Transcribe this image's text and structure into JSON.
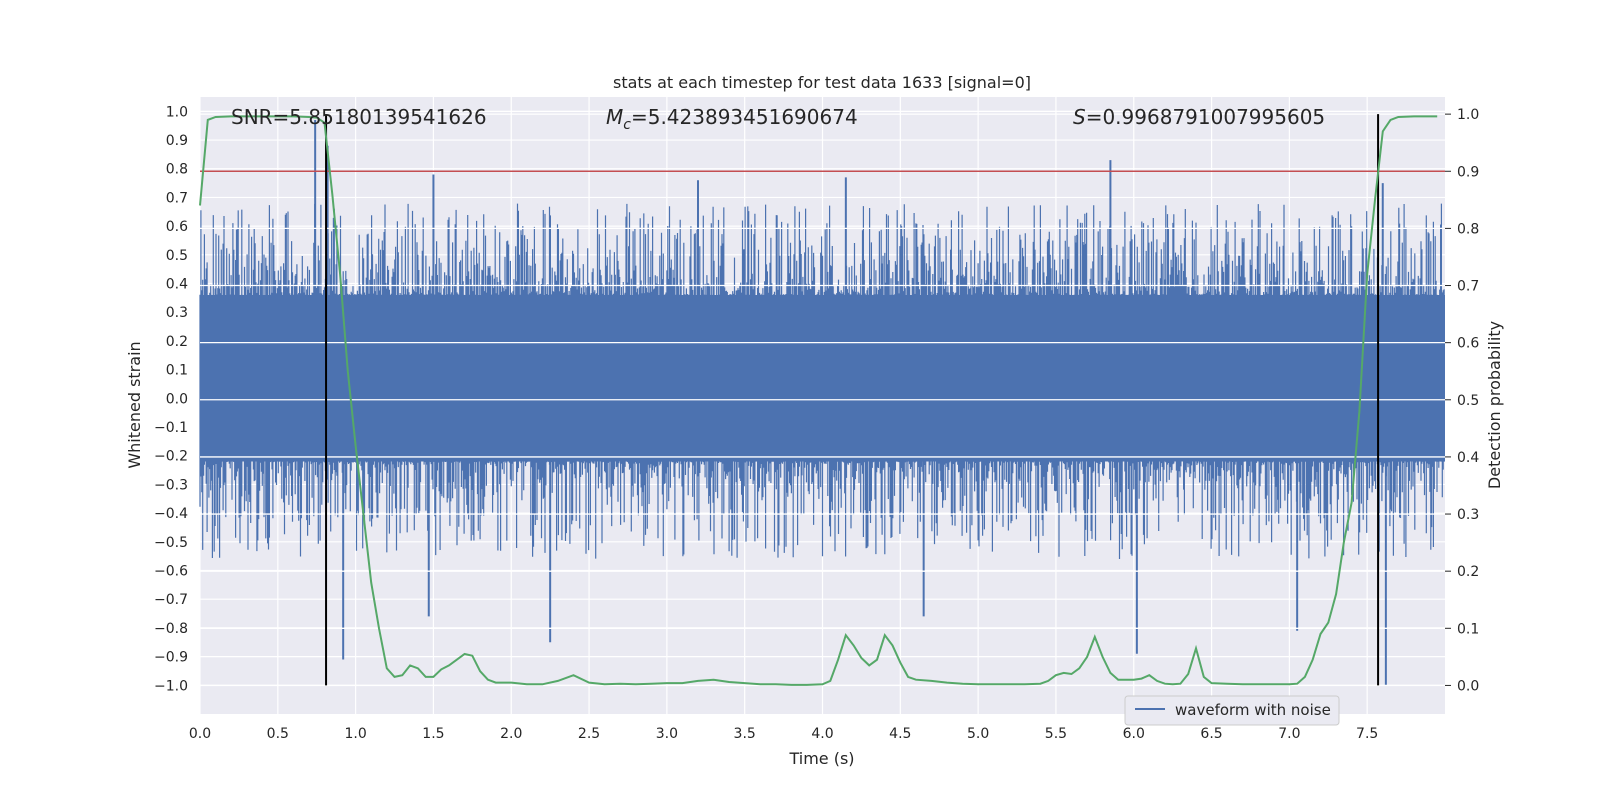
{
  "chart_data": {
    "type": "line",
    "title": "stats at each timestep for test data 1633 [signal=0]",
    "xlabel": "Time (s)",
    "ylabel": "Whitened strain",
    "y2label": "Detection probability",
    "xlim": [
      0,
      8
    ],
    "ylim": [
      -1.1,
      1.05
    ],
    "y2lim": [
      -0.05,
      1.03
    ],
    "x_ticks": [
      "0.0",
      "0.5",
      "1.0",
      "1.5",
      "2.0",
      "2.5",
      "3.0",
      "3.5",
      "4.0",
      "4.5",
      "5.0",
      "5.5",
      "6.0",
      "6.5",
      "7.0",
      "7.5"
    ],
    "y_ticks": [
      "1.0",
      "0.9",
      "0.8",
      "0.7",
      "0.6",
      "0.5",
      "0.4",
      "0.3",
      "0.2",
      "0.1",
      "0.0",
      "−0.1",
      "−0.2",
      "−0.3",
      "−0.4",
      "−0.5",
      "−0.6",
      "−0.7",
      "−0.8",
      "−0.9",
      "−1.0"
    ],
    "y2_ticks": [
      "1.0",
      "0.9",
      "0.8",
      "0.7",
      "0.6",
      "0.5",
      "0.4",
      "0.3",
      "0.2",
      "0.1",
      "0.0"
    ],
    "annotations": {
      "snr": "SNR=5.85180139541626",
      "mc_symbol": "M",
      "mc_sub": "c",
      "mc_value": "=5.423893451690674",
      "s_symbol": "S",
      "s_value": "=0.9968791007995605"
    },
    "legend": {
      "label": "waveform with noise",
      "placement": "lower-right"
    },
    "threshold": {
      "value": 0.9,
      "axis": "right",
      "color": "#c44e52"
    },
    "vlines": [
      0.81,
      7.57
    ],
    "waveform": {
      "name": "waveform with noise",
      "color": "#4c72b0",
      "t_start": 0.0,
      "t_end": 8.0,
      "band": [
        -0.22,
        0.36
      ],
      "notable_peaks": [
        {
          "t": 0.74,
          "y": 0.97
        },
        {
          "t": 0.82,
          "y": 0.88
        },
        {
          "t": 1.5,
          "y": 0.78
        },
        {
          "t": 3.2,
          "y": 0.76
        },
        {
          "t": 4.15,
          "y": 0.77
        },
        {
          "t": 5.85,
          "y": 0.83
        },
        {
          "t": 7.6,
          "y": 0.75
        },
        {
          "t": 0.92,
          "y": -0.91
        },
        {
          "t": 1.47,
          "y": -0.76
        },
        {
          "t": 2.25,
          "y": -0.85
        },
        {
          "t": 6.02,
          "y": -0.89
        },
        {
          "t": 7.62,
          "y": -1.0
        },
        {
          "t": 7.05,
          "y": -0.81
        },
        {
          "t": 4.65,
          "y": -0.76
        }
      ]
    },
    "series": [
      {
        "name": "detection probability",
        "color": "#55a868",
        "axis": "right",
        "x": [
          0.0,
          0.05,
          0.1,
          0.2,
          0.3,
          0.4,
          0.5,
          0.6,
          0.7,
          0.75,
          0.8,
          0.85,
          0.9,
          0.95,
          1.0,
          1.05,
          1.1,
          1.15,
          1.2,
          1.25,
          1.3,
          1.35,
          1.4,
          1.45,
          1.5,
          1.55,
          1.6,
          1.65,
          1.7,
          1.75,
          1.8,
          1.85,
          1.9,
          2.0,
          2.1,
          2.2,
          2.3,
          2.4,
          2.5,
          2.6,
          2.7,
          2.8,
          2.9,
          3.0,
          3.1,
          3.2,
          3.3,
          3.4,
          3.5,
          3.6,
          3.7,
          3.8,
          3.9,
          4.0,
          4.05,
          4.1,
          4.15,
          4.2,
          4.25,
          4.3,
          4.35,
          4.4,
          4.45,
          4.5,
          4.55,
          4.6,
          4.7,
          4.8,
          4.9,
          5.0,
          5.1,
          5.2,
          5.3,
          5.4,
          5.45,
          5.5,
          5.55,
          5.6,
          5.65,
          5.7,
          5.75,
          5.8,
          5.85,
          5.9,
          6.0,
          6.05,
          6.1,
          6.15,
          6.2,
          6.25,
          6.3,
          6.35,
          6.4,
          6.45,
          6.5,
          6.6,
          6.7,
          6.8,
          6.9,
          7.0,
          7.05,
          7.1,
          7.15,
          7.2,
          7.25,
          7.3,
          7.35,
          7.4,
          7.45,
          7.5,
          7.55,
          7.6,
          7.65,
          7.7,
          7.8,
          7.9,
          7.95
        ],
        "y": [
          0.84,
          0.99,
          0.995,
          0.996,
          0.996,
          0.996,
          0.996,
          0.996,
          0.995,
          0.994,
          0.985,
          0.86,
          0.72,
          0.55,
          0.42,
          0.3,
          0.18,
          0.1,
          0.03,
          0.015,
          0.018,
          0.035,
          0.03,
          0.015,
          0.015,
          0.028,
          0.035,
          0.045,
          0.055,
          0.052,
          0.025,
          0.01,
          0.005,
          0.005,
          0.002,
          0.002,
          0.008,
          0.018,
          0.005,
          0.002,
          0.003,
          0.002,
          0.003,
          0.004,
          0.004,
          0.008,
          0.01,
          0.006,
          0.004,
          0.002,
          0.002,
          0.001,
          0.001,
          0.002,
          0.008,
          0.045,
          0.088,
          0.07,
          0.048,
          0.035,
          0.045,
          0.088,
          0.07,
          0.04,
          0.015,
          0.01,
          0.008,
          0.005,
          0.003,
          0.002,
          0.002,
          0.002,
          0.002,
          0.003,
          0.008,
          0.018,
          0.022,
          0.02,
          0.03,
          0.05,
          0.085,
          0.05,
          0.022,
          0.01,
          0.01,
          0.012,
          0.018,
          0.008,
          0.003,
          0.002,
          0.003,
          0.02,
          0.065,
          0.015,
          0.004,
          0.003,
          0.002,
          0.002,
          0.002,
          0.002,
          0.003,
          0.015,
          0.045,
          0.09,
          0.11,
          0.16,
          0.25,
          0.32,
          0.48,
          0.72,
          0.85,
          0.97,
          0.99,
          0.995,
          0.996,
          0.996,
          0.996
        ]
      }
    ]
  }
}
